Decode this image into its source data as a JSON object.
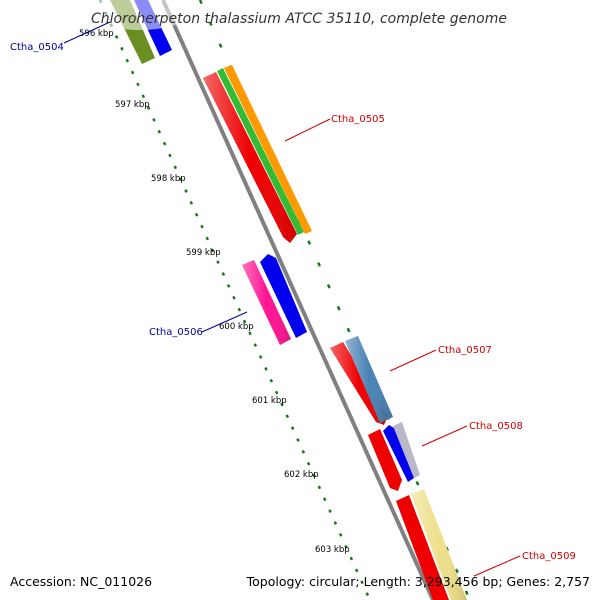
{
  "title": "Chloroherpeton thalassium ATCC 35110, complete genome",
  "footer": {
    "accession": "Accession: NC_011026",
    "summary": "Topology: circular; Length: 3,293,456 bp; Genes: 2,757"
  },
  "ticks": [
    "596 kbp",
    "597 kbp",
    "598 kbp",
    "599 kbp",
    "600 kbp",
    "601 kbp",
    "602 kbp",
    "603 kbp"
  ],
  "colors": {
    "backbone": "#808080",
    "forward_label": "#cc0000",
    "reverse_label": "#000099",
    "gc_dots": "#1a7a1a"
  },
  "features": [
    {
      "name": "olive-cds",
      "color": "#6b8e23"
    },
    {
      "name": "blue-cds-top",
      "color": "#0000ee"
    },
    {
      "name": "red-cds-0505",
      "color": "#ee0000"
    },
    {
      "name": "green-cds-0505",
      "color": "#33bb33"
    },
    {
      "name": "orange-cds-0505",
      "color": "#ff9900"
    },
    {
      "name": "magenta-cds-0506",
      "color": "#ff1493"
    },
    {
      "name": "blue-cds-0506",
      "color": "#0000ee"
    },
    {
      "name": "red-cds-0507",
      "color": "#ee0000"
    },
    {
      "name": "steel-cds-0507",
      "color": "#4a82b4"
    },
    {
      "name": "red-cds-0508",
      "color": "#ee0000"
    },
    {
      "name": "blue-cds-0508",
      "color": "#0000ee"
    },
    {
      "name": "grey-cds-0508",
      "color": "#b8b8c8"
    },
    {
      "name": "red-cds-0509",
      "color": "#ee0000"
    },
    {
      "name": "yellow-cds-0509",
      "color": "#eee08a"
    }
  ],
  "gene_labels": [
    {
      "text": "Ctha_0504",
      "strand": "reverse"
    },
    {
      "text": "Ctha_0505",
      "strand": "forward"
    },
    {
      "text": "Ctha_0506",
      "strand": "reverse"
    },
    {
      "text": "Ctha_0507",
      "strand": "forward"
    },
    {
      "text": "Ctha_0508",
      "strand": "forward"
    },
    {
      "text": "Ctha_0509",
      "strand": "forward"
    }
  ]
}
